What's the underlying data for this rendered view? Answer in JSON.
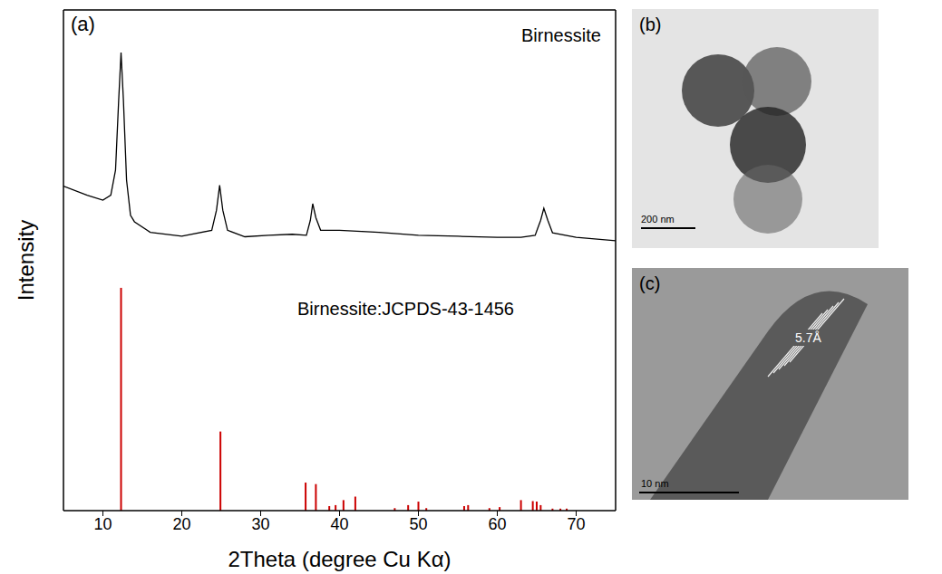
{
  "chart_data": {
    "type": "line",
    "panel_label": "(a)",
    "x_label": "2Theta (degree Cu Kα)",
    "y_label": "Intensity",
    "xlim": [
      5,
      75
    ],
    "xticks": [
      10,
      20,
      30,
      40,
      50,
      60,
      70
    ],
    "ylim": [
      0,
      100
    ],
    "tick_labels": "x",
    "grid": false,
    "series": [
      {
        "name": "Birnessite",
        "type": "line",
        "color": "#000000",
        "x": [
          5,
          8,
          10,
          11,
          11.6,
          12,
          12.3,
          12.6,
          13,
          13.5,
          14,
          16,
          20,
          23.8,
          24.4,
          24.8,
          25.2,
          25.8,
          28,
          31,
          34,
          35.8,
          36.3,
          36.6,
          37,
          37.6,
          40,
          45,
          50,
          55,
          60,
          63,
          64.8,
          65.5,
          65.9,
          66.4,
          67,
          70,
          75
        ],
        "values": [
          64.8,
          63,
          62,
          63,
          68,
          82,
          91.5,
          82,
          66,
          59,
          57.7,
          55.6,
          54.8,
          56,
          60,
          65,
          60,
          56,
          54.7,
          55,
          55.2,
          55,
          58,
          61.3,
          58.5,
          56,
          56,
          55.6,
          55,
          54.8,
          54.6,
          54.6,
          55,
          58,
          60.4,
          58,
          55.5,
          54.6,
          53.9
        ]
      },
      {
        "name": "Birnessite:JCPDS-43-1456",
        "type": "bar",
        "color": "#cc0000",
        "x": [
          12.3,
          24.9,
          35.7,
          37.0,
          38.7,
          39.5,
          40.5,
          42.0,
          47.0,
          48.7,
          50.0,
          51.0,
          55.8,
          56.3,
          59.0,
          60.3,
          63.0,
          64.5,
          65.0,
          65.5,
          67.0,
          68.0,
          68.8
        ],
        "values": [
          44.5,
          15.8,
          5.6,
          5.3,
          0.9,
          1.1,
          2.1,
          2.8,
          0.5,
          1.1,
          1.8,
          0.5,
          0.9,
          1.1,
          0.5,
          0.7,
          2.1,
          1.9,
          1.8,
          1.1,
          0.4,
          0.4,
          0.4
        ]
      }
    ]
  },
  "images": [
    {
      "panel_label": "(b)",
      "scale_bar": "200 nm"
    },
    {
      "panel_label": "(c)",
      "scale_bar": "10 nm",
      "annotation": "5.7Å"
    }
  ]
}
